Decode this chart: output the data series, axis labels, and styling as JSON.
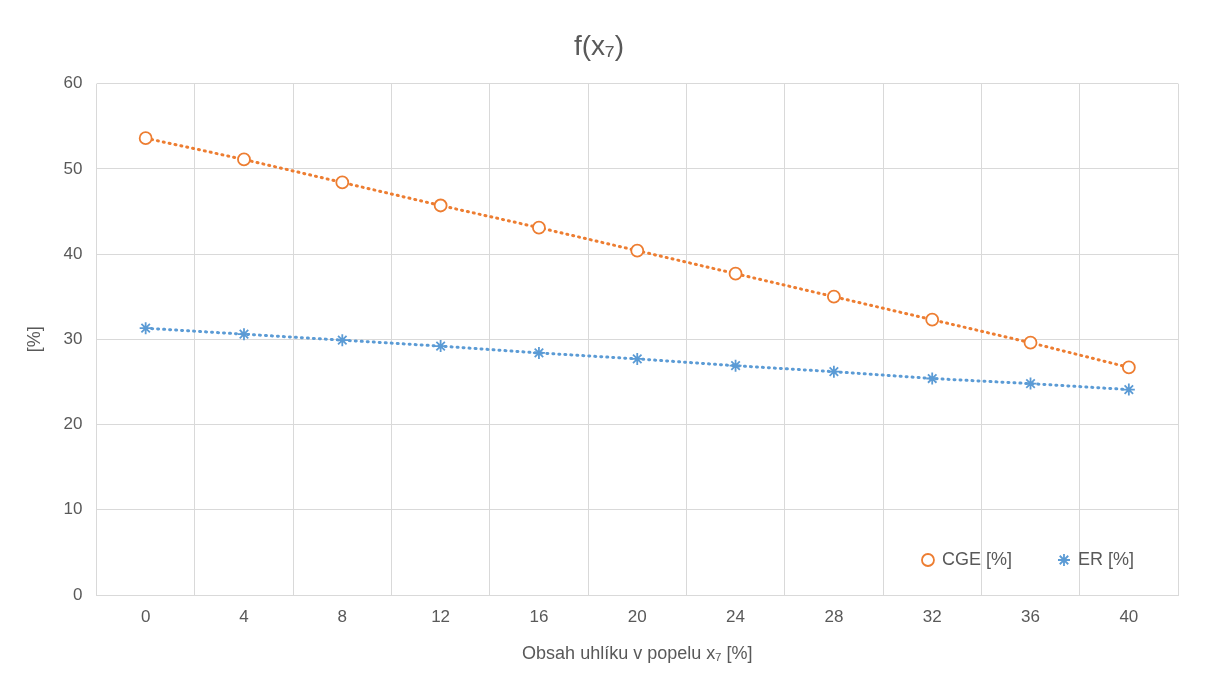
{
  "chart_data": {
    "type": "line",
    "title": "f(x₇)",
    "xlabel": "Obsah uhlíku v popelu x₇ [%]",
    "ylabel": "[%]",
    "categories": [
      "0",
      "4",
      "8",
      "12",
      "16",
      "20",
      "24",
      "28",
      "32",
      "36",
      "40"
    ],
    "series": [
      {
        "name": "CGE [%]",
        "color": "#ed7d31",
        "marker": "circle",
        "values": [
          53.6,
          51.1,
          48.4,
          45.7,
          43.1,
          40.4,
          37.7,
          35.0,
          32.3,
          29.6,
          26.7
        ]
      },
      {
        "name": "ER [%]",
        "color": "#5b9bd5",
        "marker": "cross",
        "values": [
          31.3,
          30.6,
          29.9,
          29.2,
          28.4,
          27.7,
          26.9,
          26.2,
          25.4,
          24.8,
          24.1
        ]
      }
    ],
    "ylim": [
      0,
      60
    ],
    "yticks": [
      0,
      10,
      20,
      30,
      40,
      50,
      60
    ],
    "grid": true,
    "legend": "bottom right",
    "line_style": "dotted"
  }
}
